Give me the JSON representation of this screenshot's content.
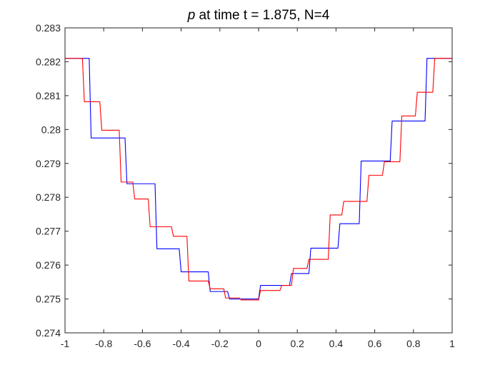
{
  "chart_data": {
    "type": "line",
    "title": "p at time t = 1.875, N=4",
    "title_parts": {
      "italic": "p",
      "rest": " at time t = 1.875, N=4"
    },
    "xlabel": "",
    "ylabel": "",
    "xlim": [
      -1,
      1
    ],
    "ylim": [
      0.274,
      0.283
    ],
    "grid": false,
    "x_ticks": [
      -1,
      -0.8,
      -0.6,
      -0.4,
      -0.2,
      0,
      0.2,
      0.4,
      0.6,
      0.8,
      1
    ],
    "x_tick_labels": [
      "-1",
      "-0.8",
      "-0.6",
      "-0.4",
      "-0.2",
      "0",
      "0.2",
      "0.4",
      "0.6",
      "0.8",
      "1"
    ],
    "y_ticks": [
      0.274,
      0.275,
      0.276,
      0.277,
      0.278,
      0.279,
      0.28,
      0.281,
      0.282,
      0.283
    ],
    "y_tick_labels": [
      "0.274",
      "0.275",
      "0.276",
      "0.277",
      "0.278",
      "0.279",
      "0.28",
      "0.281",
      "0.282",
      "0.283"
    ],
    "series": [
      {
        "color": "#0000ff",
        "x": [
          -1.0,
          -0.875,
          -0.865,
          -0.69,
          -0.68,
          -0.535,
          -0.525,
          -0.41,
          -0.4,
          -0.26,
          -0.25,
          -0.16,
          -0.15,
          0.0,
          0.01,
          0.16,
          0.17,
          0.26,
          0.27,
          0.41,
          0.42,
          0.52,
          0.53,
          0.68,
          0.69,
          0.86,
          0.87,
          1.0
        ],
        "y": [
          0.2821,
          0.2821,
          0.27975,
          0.27975,
          0.2784,
          0.2784,
          0.27648,
          0.27648,
          0.2758,
          0.2758,
          0.27522,
          0.27522,
          0.275,
          0.275,
          0.2754,
          0.2754,
          0.27575,
          0.27575,
          0.2765,
          0.2765,
          0.27722,
          0.27722,
          0.27907,
          0.27907,
          0.28025,
          0.28025,
          0.2821,
          0.2821
        ]
      },
      {
        "color": "#ff0000",
        "x": [
          -1.0,
          -0.91,
          -0.9,
          -0.82,
          -0.81,
          -0.72,
          -0.71,
          -0.65,
          -0.64,
          -0.57,
          -0.56,
          -0.45,
          -0.44,
          -0.37,
          -0.36,
          -0.26,
          -0.25,
          -0.18,
          -0.17,
          -0.1,
          -0.09,
          0.0,
          0.01,
          0.11,
          0.12,
          0.17,
          0.18,
          0.25,
          0.26,
          0.36,
          0.37,
          0.43,
          0.44,
          0.56,
          0.57,
          0.64,
          0.65,
          0.73,
          0.74,
          0.81,
          0.82,
          0.9,
          0.91,
          1.0
        ],
        "y": [
          0.2821,
          0.2821,
          0.28082,
          0.28082,
          0.27998,
          0.27998,
          0.27845,
          0.27845,
          0.27795,
          0.27795,
          0.27713,
          0.27713,
          0.27685,
          0.27685,
          0.27553,
          0.27553,
          0.2753,
          0.2753,
          0.27503,
          0.27503,
          0.27497,
          0.27497,
          0.27525,
          0.27525,
          0.2754,
          0.2754,
          0.2759,
          0.2759,
          0.27617,
          0.27617,
          0.27748,
          0.27748,
          0.27788,
          0.27788,
          0.27865,
          0.27865,
          0.27905,
          0.27905,
          0.2804,
          0.2804,
          0.2811,
          0.2811,
          0.2821,
          0.2821
        ]
      }
    ]
  }
}
